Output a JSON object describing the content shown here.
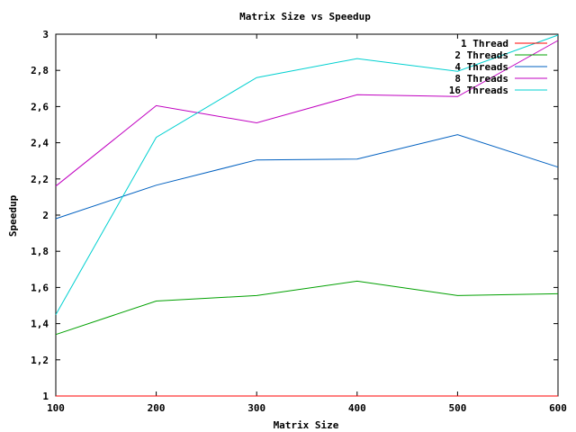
{
  "chart_data": {
    "type": "line",
    "title": "Matrix Size vs Speedup",
    "xlabel": "Matrix Size",
    "ylabel": "Speedup",
    "xlim": [
      100,
      600
    ],
    "ylim": [
      1,
      3
    ],
    "x_ticks": [
      "100",
      "200",
      "300",
      "400",
      "500",
      "600"
    ],
    "y_ticks": [
      "1",
      "1,2",
      "1,4",
      "1,6",
      "1,8",
      "2",
      "2,2",
      "2,4",
      "2,6",
      "2,8",
      "3"
    ],
    "grid": false,
    "legend_position": "top-right",
    "x": [
      100,
      200,
      300,
      400,
      500,
      600
    ],
    "series": [
      {
        "name": "1 Thread",
        "color": "#ff0000",
        "values": [
          1,
          1,
          1,
          1,
          1,
          1
        ]
      },
      {
        "name": "2 Threads",
        "color": "#00a000",
        "values": [
          1.34,
          1.525,
          1.555,
          1.635,
          1.555,
          1.565
        ]
      },
      {
        "name": "4 Threads",
        "color": "#0060c0",
        "values": [
          1.98,
          2.165,
          2.305,
          2.31,
          2.445,
          2.265
        ]
      },
      {
        "name": "8 Threads",
        "color": "#c000c0",
        "values": [
          2.16,
          2.605,
          2.51,
          2.665,
          2.655,
          2.965
        ]
      },
      {
        "name": "16 Threads",
        "color": "#00d0d0",
        "values": [
          1.45,
          2.43,
          2.76,
          2.865,
          2.795,
          2.995
        ]
      }
    ]
  }
}
